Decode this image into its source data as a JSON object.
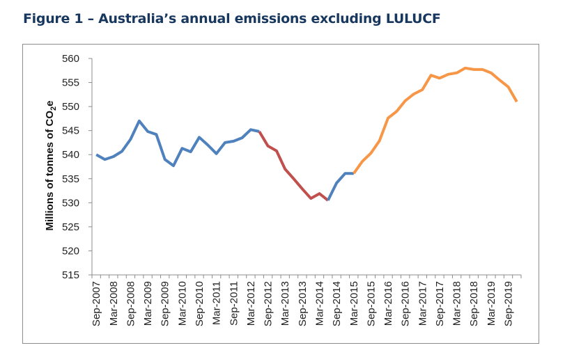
{
  "title": "Figure 1 – Australia’s annual emissions excluding LULUCF",
  "chart_data": {
    "type": "line",
    "title": "Figure 1 – Australia’s annual emissions excluding LULUCF",
    "xlabel": "",
    "ylabel": {
      "main": "Millions of tonnes of CO",
      "sub": "2",
      "suffix": "e"
    },
    "ylim": [
      515,
      560
    ],
    "y_ticks": [
      "515",
      "520",
      "525",
      "530",
      "535",
      "540",
      "545",
      "550",
      "555",
      "560"
    ],
    "x_tick_labels": [
      "Sep-2007",
      "Mar-2008",
      "Sep-2008",
      "Mar-2009",
      "Sep-2009",
      "Mar-2010",
      "Sep-2010",
      "Mar-2011",
      "Sep-2011",
      "Mar-2012",
      "Sep-2012",
      "Mar-2013",
      "Sep-2013",
      "Mar-2014",
      "Sep-2014",
      "Mar-2015",
      "Sep-2015",
      "Mar-2016",
      "Sep-2016",
      "Mar-2017",
      "Sep-2017",
      "Mar-2018",
      "Sep-2018",
      "Mar-2019",
      "Sep-2019"
    ],
    "x_frequency": "quarterly",
    "values": [
      540.0,
      539.0,
      539.6,
      540.7,
      543.2,
      547.0,
      544.8,
      544.2,
      539.0,
      537.7,
      541.3,
      540.6,
      543.6,
      542.0,
      540.2,
      542.5,
      542.8,
      543.5,
      545.2,
      544.8,
      541.8,
      540.8,
      537.0,
      535.0,
      532.9,
      530.9,
      531.9,
      530.5,
      534.1,
      536.1,
      536.1,
      538.6,
      540.3,
      542.9,
      547.6,
      549.0,
      551.2,
      552.6,
      553.5,
      556.5,
      555.9,
      556.7,
      557.0,
      558.0,
      557.7,
      557.7,
      557.0,
      555.5,
      554.1,
      551.0
    ],
    "segments": [
      {
        "from": 0,
        "to": 19,
        "color": "#4F81BD"
      },
      {
        "from": 19,
        "to": 27,
        "color": "#C0504D"
      },
      {
        "from": 27,
        "to": 30,
        "color": "#4F81BD"
      },
      {
        "from": 30,
        "to": 49,
        "color": "#F79646"
      }
    ],
    "grid": false,
    "legend": "none"
  }
}
